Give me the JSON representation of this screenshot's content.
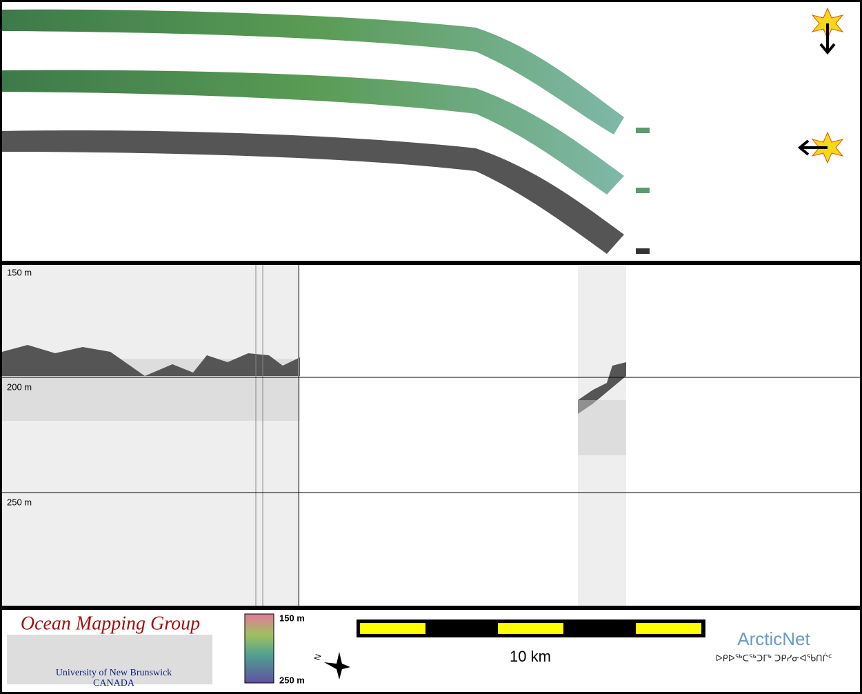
{
  "profile": {
    "depth_labels": [
      "150 m",
      "200 m",
      "250 m"
    ]
  },
  "footer": {
    "logo": {
      "title": "Ocean Mapping Group",
      "subtitle": "University of New Brunswick",
      "country": "CANADA"
    },
    "colorbar": {
      "top": "150 m",
      "bottom": "250 m"
    },
    "north": "N",
    "scale_bar": "10 km",
    "partner": {
      "name": "ArcticNet",
      "syllabics": "ᐅᑭᐅᖅᑕᖅᑐᒥᒃ ᑐᑭᓯᓂᐊᖃᑎᒌᑦ"
    }
  }
}
